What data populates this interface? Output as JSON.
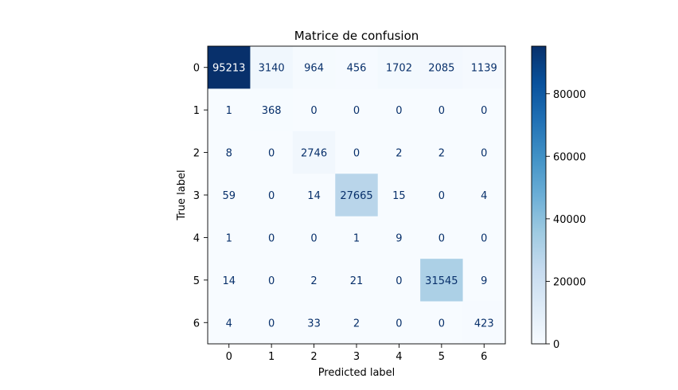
{
  "chart_data": {
    "type": "heatmap",
    "title": "Matrice de confusion",
    "xlabel": "Predicted label",
    "ylabel": "True label",
    "x_categories": [
      "0",
      "1",
      "2",
      "3",
      "4",
      "5",
      "6"
    ],
    "y_categories": [
      "0",
      "1",
      "2",
      "3",
      "4",
      "5",
      "6"
    ],
    "matrix": [
      [
        95213,
        3140,
        964,
        456,
        1702,
        2085,
        1139
      ],
      [
        1,
        368,
        0,
        0,
        0,
        0,
        0
      ],
      [
        8,
        0,
        2746,
        0,
        2,
        2,
        0
      ],
      [
        59,
        0,
        14,
        27665,
        15,
        0,
        4
      ],
      [
        1,
        0,
        0,
        1,
        9,
        0,
        0
      ],
      [
        14,
        0,
        2,
        21,
        0,
        31545,
        9
      ],
      [
        4,
        0,
        33,
        2,
        0,
        0,
        423
      ]
    ],
    "colormap": "Blues",
    "colorbar": {
      "range": [
        0,
        95213
      ],
      "ticks": [
        0,
        20000,
        40000,
        60000,
        80000
      ]
    }
  }
}
